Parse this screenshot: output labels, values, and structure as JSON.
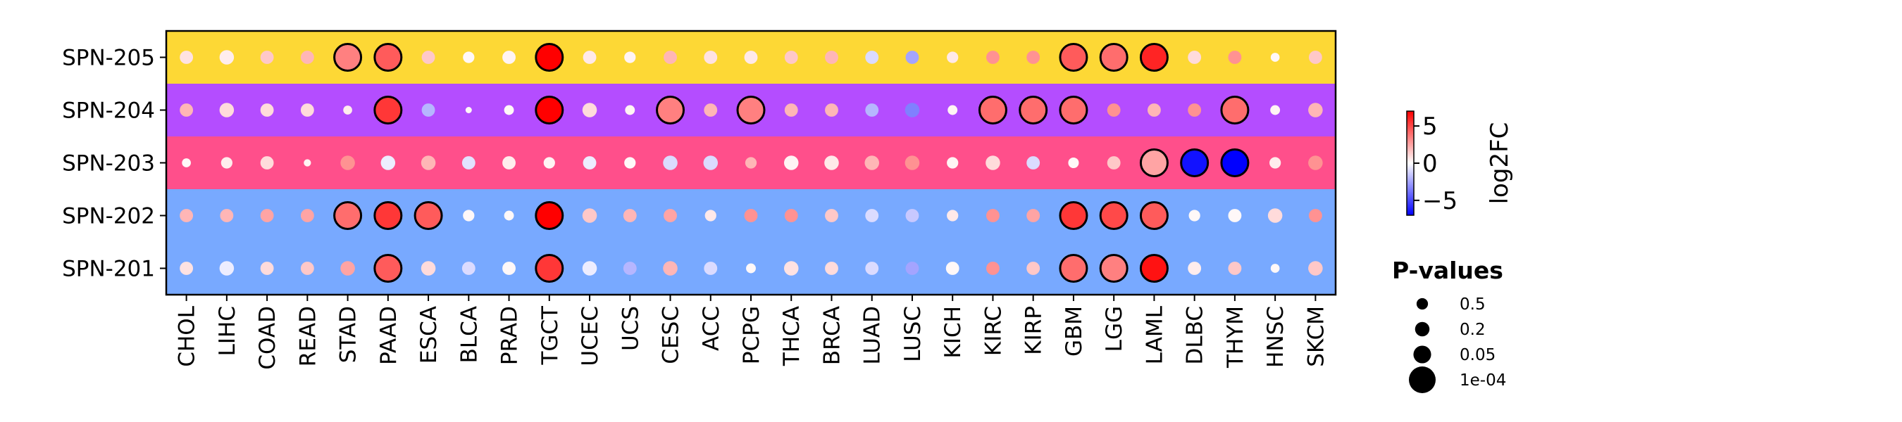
{
  "chart_data": {
    "type": "dotplot",
    "rows": [
      "SPN-205",
      "SPN-204",
      "SPN-203",
      "SPN-202",
      "SPN-201"
    ],
    "row_band_colors": [
      "#fdd835",
      "#b44dff",
      "#ff4f8b",
      "#78a9ff",
      "#78a9ff"
    ],
    "categories": [
      "CHOL",
      "LIHC",
      "COAD",
      "READ",
      "STAD",
      "PAAD",
      "ESCA",
      "BLCA",
      "PRAD",
      "TGCT",
      "UCEC",
      "UCS",
      "CESC",
      "ACC",
      "PCPG",
      "THCA",
      "BRCA",
      "LUAD",
      "LUSC",
      "KICH",
      "KIRC",
      "KIRP",
      "GBM",
      "LGG",
      "LAML",
      "DLBC",
      "THYM",
      "HNSC",
      "SKCM"
    ],
    "log2fc": [
      [
        0.8,
        0.5,
        1.5,
        2.0,
        3.5,
        4.5,
        1.5,
        0.2,
        0.3,
        7.0,
        0.6,
        0.3,
        2.0,
        0.8,
        0.6,
        1.5,
        2.0,
        -1.0,
        -2.5,
        0.6,
        3.0,
        3.0,
        4.5,
        4.0,
        6.0,
        1.0,
        3.0,
        0.2,
        1.5
      ],
      [
        2.0,
        1.0,
        1.0,
        1.0,
        0.5,
        5.5,
        -2.0,
        0.2,
        0.2,
        7.0,
        1.0,
        0.3,
        3.5,
        2.0,
        3.5,
        2.0,
        2.0,
        -2.0,
        -3.5,
        0.3,
        4.0,
        4.0,
        4.0,
        3.0,
        2.0,
        3.0,
        4.0,
        0.3,
        2.0
      ],
      [
        0.2,
        0.5,
        1.0,
        0.3,
        3.0,
        -0.5,
        2.0,
        -0.8,
        0.5,
        0.3,
        -0.5,
        0.2,
        -1.0,
        -1.0,
        2.0,
        0.3,
        0.6,
        2.0,
        3.0,
        0.3,
        1.0,
        -1.0,
        0.2,
        1.5,
        2.5,
        -6.5,
        -7.0,
        0.5,
        3.0
      ],
      [
        2.0,
        2.0,
        2.5,
        2.5,
        4.0,
        5.5,
        4.5,
        0.2,
        0.2,
        7.0,
        1.5,
        2.0,
        2.5,
        0.6,
        3.0,
        3.0,
        1.5,
        -1.0,
        -1.5,
        0.6,
        3.0,
        2.5,
        5.5,
        5.0,
        4.5,
        0.2,
        0.2,
        1.0,
        3.0
      ],
      [
        0.8,
        -0.5,
        1.0,
        1.5,
        2.5,
        4.5,
        1.0,
        -1.0,
        0.2,
        5.5,
        -0.5,
        -2.0,
        2.0,
        -1.0,
        0.2,
        0.8,
        1.0,
        -1.0,
        -2.5,
        0.2,
        3.0,
        1.5,
        4.0,
        3.5,
        6.5,
        0.5,
        1.5,
        0.2,
        1.5
      ]
    ],
    "pvalue": [
      [
        0.3,
        0.2,
        0.3,
        0.3,
        0.0001,
        0.0001,
        0.3,
        0.5,
        0.3,
        0.0001,
        0.3,
        0.5,
        0.3,
        0.3,
        0.3,
        0.3,
        0.3,
        0.3,
        0.3,
        0.5,
        0.3,
        0.3,
        0.0001,
        0.0001,
        0.0001,
        0.3,
        0.3,
        0.8,
        0.3
      ],
      [
        0.3,
        0.2,
        0.3,
        0.3,
        0.8,
        0.0001,
        0.3,
        0.99,
        0.7,
        0.0001,
        0.2,
        0.7,
        0.0001,
        0.3,
        0.0001,
        0.3,
        0.3,
        0.3,
        0.2,
        0.7,
        0.0001,
        0.0001,
        0.0001,
        0.3,
        0.3,
        0.3,
        0.0001,
        0.7,
        0.2
      ],
      [
        0.8,
        0.5,
        0.3,
        0.95,
        0.2,
        0.2,
        0.2,
        0.3,
        0.3,
        0.5,
        0.3,
        0.5,
        0.2,
        0.2,
        0.5,
        0.2,
        0.2,
        0.2,
        0.2,
        0.5,
        0.2,
        0.3,
        0.6,
        0.3,
        0.0001,
        0.0001,
        0.0001,
        0.5,
        0.2
      ],
      [
        0.3,
        0.3,
        0.3,
        0.3,
        0.0001,
        0.0001,
        0.0001,
        0.5,
        0.7,
        0.0001,
        0.2,
        0.3,
        0.3,
        0.5,
        0.3,
        0.3,
        0.3,
        0.3,
        0.3,
        0.5,
        0.3,
        0.3,
        0.0001,
        0.0001,
        0.0001,
        0.5,
        0.3,
        0.2,
        0.3
      ],
      [
        0.3,
        0.2,
        0.3,
        0.3,
        0.2,
        0.0001,
        0.2,
        0.3,
        0.3,
        0.0001,
        0.2,
        0.3,
        0.2,
        0.3,
        0.7,
        0.2,
        0.3,
        0.3,
        0.3,
        0.3,
        0.3,
        0.3,
        0.0001,
        0.0001,
        0.0001,
        0.3,
        0.3,
        0.8,
        0.2
      ]
    ],
    "highlight_threshold": "p < 1e-03",
    "colorbar": {
      "label": "log2FC",
      "ticks": [
        "5",
        "0",
        "−5"
      ],
      "tick_values": [
        5,
        0,
        -5
      ],
      "range": [
        -7,
        7
      ],
      "cmap": [
        "#0000ff",
        "#ffffff",
        "#ff0000"
      ]
    },
    "size_legend": {
      "title": "P-values",
      "labels": [
        "0.5",
        "0.2",
        "0.05",
        "1e-04"
      ],
      "values": [
        0.5,
        0.2,
        0.05,
        0.0001
      ]
    }
  }
}
